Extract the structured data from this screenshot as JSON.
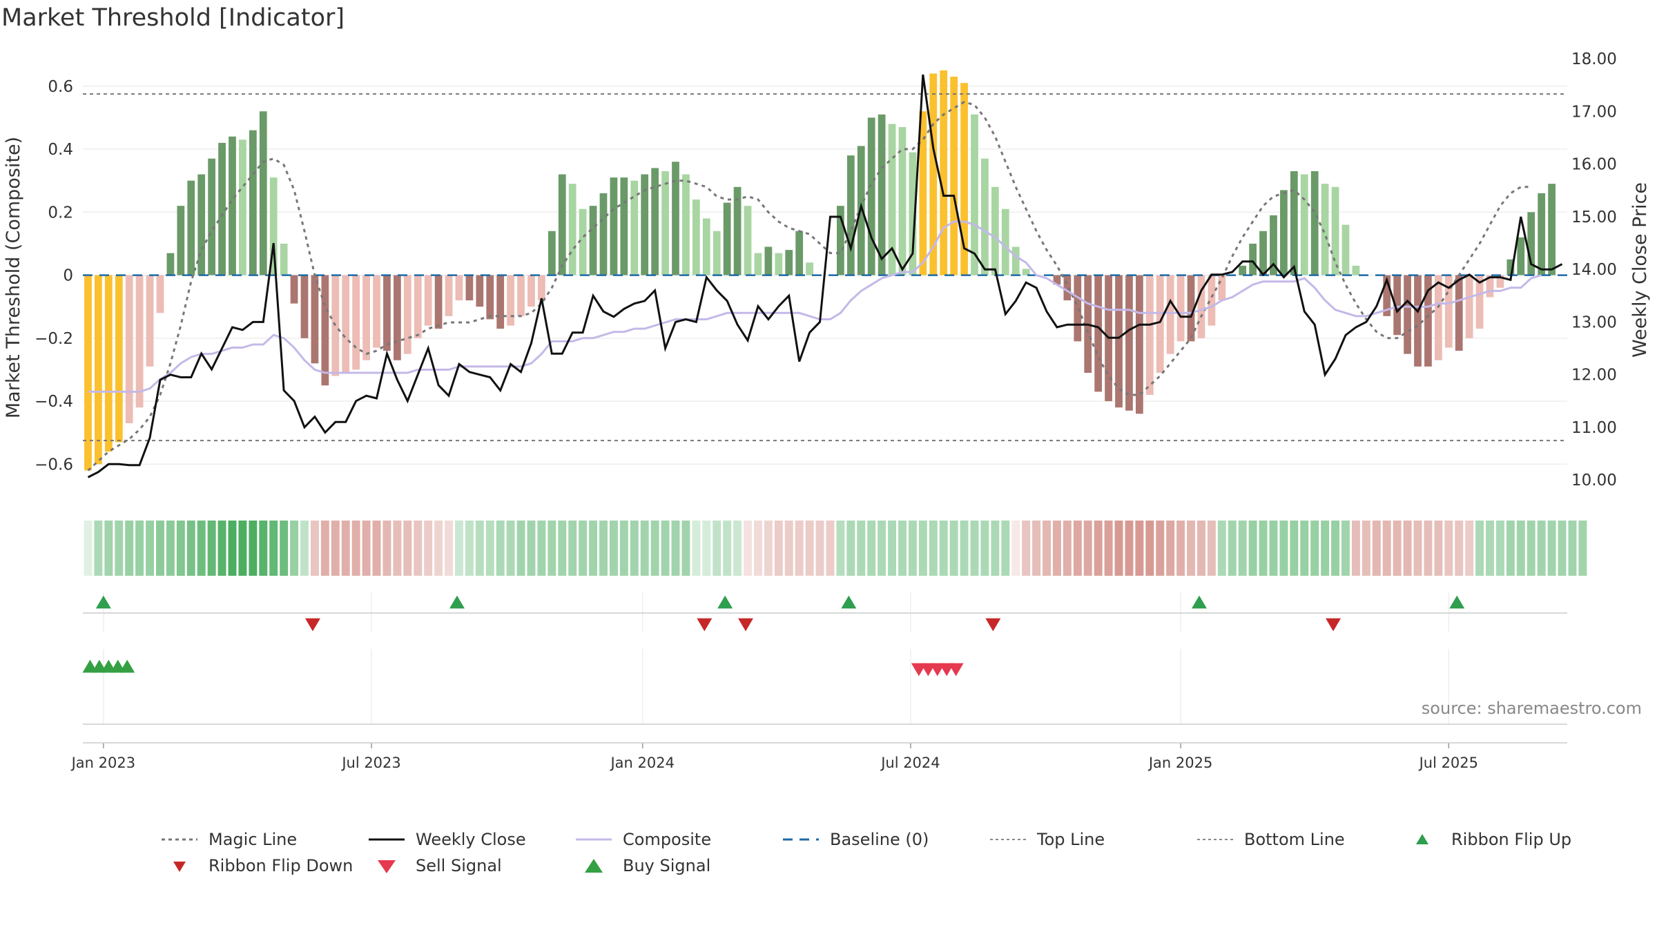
{
  "title": "Market Threshold [Indicator]",
  "source": "source: sharemaestro.com",
  "colors": {
    "gold": "#fbc02d",
    "dark_green": "#6a9a68",
    "light_green": "#a8d5a2",
    "dark_red": "#ab7670",
    "light_red": "#ecbcb5",
    "close": "#111111",
    "composite": "#c4b8e8",
    "magic": "#777777",
    "baseline": "#1f6aa5",
    "flip_up": "#2e9e4f",
    "flip_down": "#c62828",
    "sell": "#e53950",
    "buy": "#34a043"
  },
  "chart_data": {
    "type": "bar",
    "title": "Market Threshold [Indicator]",
    "ylabel": "Market Threshold (Composite)",
    "y2label": "Weekly Close Price",
    "ylim": [
      -0.7,
      0.72
    ],
    "y2lim": [
      9.7,
      18.2
    ],
    "yticks": [
      {
        "v": -0.6,
        "t": "−0.6"
      },
      {
        "v": -0.4,
        "t": "−0.4"
      },
      {
        "v": -0.2,
        "t": "−0.2"
      },
      {
        "v": 0,
        "t": "0"
      },
      {
        "v": 0.2,
        "t": "0.2"
      },
      {
        "v": 0.4,
        "t": "0.4"
      },
      {
        "v": 0.6,
        "t": "0.6"
      }
    ],
    "y2ticks": [
      "10.00",
      "11.00",
      "12.00",
      "13.00",
      "14.00",
      "15.00",
      "16.00",
      "17.00",
      "18.00"
    ],
    "xticks": [
      {
        "w": 1.5,
        "t": "Jan 2023"
      },
      {
        "w": 27.5,
        "t": "Jul 2023"
      },
      {
        "w": 53.8,
        "t": "Jan 2024"
      },
      {
        "w": 79.8,
        "t": "Jul 2024"
      },
      {
        "w": 106,
        "t": "Jan 2025"
      },
      {
        "w": 132,
        "t": "Jul 2025"
      }
    ],
    "weeks": 144,
    "top_line": 0.575,
    "bottom_line": -0.525,
    "baseline": 0,
    "gold_weeks": [
      0,
      1,
      2,
      3,
      81,
      82,
      83,
      84,
      85
    ],
    "bars": [
      -0.62,
      -0.6,
      -0.56,
      -0.53,
      -0.47,
      -0.42,
      -0.29,
      -0.12,
      0.07,
      0.22,
      0.3,
      0.32,
      0.37,
      0.42,
      0.44,
      0.43,
      0.46,
      0.52,
      0.31,
      0.1,
      -0.09,
      -0.2,
      -0.28,
      -0.35,
      -0.32,
      -0.31,
      -0.3,
      -0.27,
      -0.23,
      -0.24,
      -0.27,
      -0.25,
      -0.2,
      -0.16,
      -0.17,
      -0.13,
      -0.08,
      -0.08,
      -0.1,
      -0.14,
      -0.17,
      -0.16,
      -0.13,
      -0.1,
      -0.08,
      0.14,
      0.32,
      0.29,
      0.21,
      0.22,
      0.26,
      0.31,
      0.31,
      0.3,
      0.32,
      0.34,
      0.33,
      0.36,
      0.32,
      0.24,
      0.18,
      0.14,
      0.23,
      0.28,
      0.22,
      0.07,
      0.09,
      0.07,
      0.08,
      0.14,
      0.04,
      0.0,
      0.0,
      0.22,
      0.38,
      0.41,
      0.5,
      0.51,
      0.48,
      0.47,
      0.39,
      0.52,
      0.64,
      0.65,
      0.63,
      0.61,
      0.51,
      0.37,
      0.28,
      0.21,
      0.09,
      0.02,
      0.0,
      0.0,
      -0.03,
      -0.08,
      -0.21,
      -0.31,
      -0.37,
      -0.4,
      -0.42,
      -0.43,
      -0.44,
      -0.38,
      -0.31,
      -0.25,
      -0.21,
      -0.21,
      -0.2,
      -0.16,
      -0.08,
      0.0,
      0.03,
      0.1,
      0.14,
      0.19,
      0.27,
      0.33,
      0.32,
      0.33,
      0.29,
      0.28,
      0.16,
      0.03,
      0.0,
      0.0,
      -0.13,
      -0.19,
      -0.25,
      -0.29,
      -0.29,
      -0.27,
      -0.23,
      -0.24,
      -0.2,
      -0.17,
      -0.07,
      -0.04,
      0.05,
      0.12,
      0.2,
      0.26,
      0.29
    ],
    "magic_line": [
      -0.62,
      -0.59,
      -0.56,
      -0.54,
      -0.52,
      -0.49,
      -0.45,
      -0.38,
      -0.28,
      -0.16,
      -0.02,
      0.08,
      0.14,
      0.19,
      0.24,
      0.28,
      0.32,
      0.36,
      0.37,
      0.35,
      0.27,
      0.14,
      0.0,
      -0.1,
      -0.16,
      -0.2,
      -0.23,
      -0.25,
      -0.24,
      -0.22,
      -0.21,
      -0.2,
      -0.19,
      -0.17,
      -0.16,
      -0.15,
      -0.15,
      -0.15,
      -0.14,
      -0.13,
      -0.13,
      -0.13,
      -0.13,
      -0.12,
      -0.09,
      -0.04,
      0.03,
      0.08,
      0.12,
      0.15,
      0.18,
      0.21,
      0.23,
      0.25,
      0.27,
      0.28,
      0.29,
      0.3,
      0.3,
      0.29,
      0.28,
      0.25,
      0.24,
      0.24,
      0.25,
      0.24,
      0.2,
      0.17,
      0.15,
      0.14,
      0.13,
      0.1,
      0.07,
      0.07,
      0.14,
      0.22,
      0.29,
      0.34,
      0.37,
      0.4,
      0.4,
      0.43,
      0.48,
      0.51,
      0.53,
      0.55,
      0.54,
      0.5,
      0.44,
      0.36,
      0.28,
      0.21,
      0.14,
      0.08,
      0.03,
      -0.03,
      -0.1,
      -0.18,
      -0.26,
      -0.32,
      -0.36,
      -0.38,
      -0.38,
      -0.35,
      -0.32,
      -0.28,
      -0.24,
      -0.2,
      -0.13,
      -0.07,
      -0.01,
      0.06,
      0.12,
      0.17,
      0.22,
      0.25,
      0.26,
      0.27,
      0.24,
      0.2,
      0.13,
      0.04,
      -0.03,
      -0.09,
      -0.14,
      -0.18,
      -0.2,
      -0.2,
      -0.18,
      -0.16,
      -0.13,
      -0.1,
      -0.05,
      0.0,
      0.05,
      0.1,
      0.16,
      0.22,
      0.26,
      0.28,
      0.28
    ],
    "composite": [
      -0.37,
      -0.37,
      -0.37,
      -0.37,
      -0.37,
      -0.37,
      -0.36,
      -0.33,
      -0.31,
      -0.28,
      -0.26,
      -0.25,
      -0.25,
      -0.24,
      -0.23,
      -0.23,
      -0.22,
      -0.22,
      -0.19,
      -0.2,
      -0.23,
      -0.27,
      -0.3,
      -0.31,
      -0.31,
      -0.31,
      -0.31,
      -0.31,
      -0.31,
      -0.31,
      -0.31,
      -0.31,
      -0.3,
      -0.3,
      -0.3,
      -0.3,
      -0.29,
      -0.29,
      -0.29,
      -0.29,
      -0.29,
      -0.29,
      -0.29,
      -0.28,
      -0.25,
      -0.21,
      -0.21,
      -0.21,
      -0.2,
      -0.2,
      -0.19,
      -0.18,
      -0.18,
      -0.17,
      -0.17,
      -0.16,
      -0.15,
      -0.14,
      -0.14,
      -0.14,
      -0.14,
      -0.13,
      -0.12,
      -0.12,
      -0.12,
      -0.12,
      -0.12,
      -0.12,
      -0.12,
      -0.12,
      -0.13,
      -0.14,
      -0.14,
      -0.12,
      -0.08,
      -0.05,
      -0.03,
      -0.01,
      0.0,
      0.01,
      0.01,
      0.04,
      0.09,
      0.15,
      0.17,
      0.17,
      0.16,
      0.14,
      0.12,
      0.09,
      0.06,
      0.04,
      0.0,
      -0.01,
      -0.03,
      -0.05,
      -0.07,
      -0.09,
      -0.1,
      -0.11,
      -0.11,
      -0.11,
      -0.12,
      -0.12,
      -0.12,
      -0.12,
      -0.12,
      -0.12,
      -0.11,
      -0.1,
      -0.08,
      -0.07,
      -0.05,
      -0.03,
      -0.02,
      -0.02,
      -0.02,
      -0.02,
      -0.01,
      -0.04,
      -0.08,
      -0.11,
      -0.12,
      -0.13,
      -0.13,
      -0.12,
      -0.11,
      -0.1,
      -0.1,
      -0.1,
      -0.1,
      -0.09,
      -0.09,
      -0.08,
      -0.07,
      -0.06,
      -0.05,
      -0.05,
      -0.04,
      -0.04,
      -0.01,
      0.0
    ],
    "weekly_close": [
      10.05,
      10.15,
      10.3,
      10.3,
      10.28,
      10.28,
      10.8,
      11.9,
      12.0,
      11.95,
      11.95,
      12.4,
      12.1,
      12.5,
      12.9,
      12.85,
      13.0,
      13.0,
      14.5,
      11.7,
      11.5,
      11.0,
      11.2,
      10.9,
      11.1,
      11.1,
      11.5,
      11.6,
      11.55,
      12.4,
      11.9,
      11.5,
      12.0,
      12.5,
      11.8,
      11.6,
      12.2,
      12.05,
      12.0,
      11.95,
      11.7,
      12.2,
      12.05,
      12.6,
      13.45,
      12.4,
      12.4,
      12.8,
      12.8,
      13.5,
      13.2,
      13.1,
      13.25,
      13.35,
      13.4,
      13.6,
      12.5,
      13.0,
      13.05,
      13.0,
      13.85,
      13.6,
      13.4,
      12.95,
      12.65,
      13.3,
      13.05,
      13.3,
      13.5,
      12.25,
      12.8,
      13.0,
      15.0,
      15.0,
      14.4,
      15.2,
      14.6,
      14.2,
      14.4,
      14.0,
      14.3,
      17.7,
      16.3,
      15.4,
      15.4,
      14.4,
      14.3,
      14.0,
      14.0,
      13.15,
      13.4,
      13.75,
      13.65,
      13.2,
      12.9,
      12.95,
      12.95,
      12.95,
      12.9,
      12.7,
      12.7,
      12.85,
      12.95,
      12.95,
      13.0,
      13.4,
      13.1,
      13.1,
      13.6,
      13.9,
      13.9,
      13.95,
      14.15,
      14.15,
      13.9,
      14.1,
      13.85,
      14.05,
      13.2,
      12.95,
      12.0,
      12.3,
      12.75,
      12.9,
      13.0,
      13.3,
      13.8,
      13.2,
      13.4,
      13.2,
      13.6,
      13.75,
      13.65,
      13.8,
      13.9,
      13.75,
      13.85,
      13.85,
      13.8,
      15.0,
      14.1,
      14.0,
      14.0,
      14.1
    ],
    "ribbon": [
      0.15,
      0.4,
      0.45,
      0.45,
      0.5,
      0.5,
      0.5,
      0.55,
      0.55,
      0.6,
      0.65,
      0.7,
      0.75,
      0.8,
      0.85,
      0.85,
      0.85,
      0.8,
      0.75,
      0.7,
      0.5,
      0.3,
      -0.4,
      -0.55,
      -0.55,
      -0.55,
      -0.55,
      -0.55,
      -0.55,
      -0.5,
      -0.45,
      -0.45,
      -0.4,
      -0.35,
      -0.3,
      -0.25,
      0.25,
      0.3,
      0.35,
      0.35,
      0.4,
      0.4,
      0.45,
      0.45,
      0.45,
      0.45,
      0.45,
      0.45,
      0.45,
      0.45,
      0.45,
      0.45,
      0.45,
      0.45,
      0.45,
      0.45,
      0.45,
      0.45,
      0.45,
      0.2,
      0.2,
      0.3,
      0.3,
      0.25,
      -0.2,
      -0.25,
      -0.3,
      -0.35,
      -0.35,
      -0.35,
      -0.35,
      -0.35,
      -0.35,
      0.35,
      0.4,
      0.4,
      0.4,
      0.4,
      0.4,
      0.4,
      0.4,
      0.4,
      0.4,
      0.4,
      0.4,
      0.4,
      0.4,
      0.4,
      0.4,
      0.4,
      -0.15,
      -0.4,
      -0.45,
      -0.5,
      -0.55,
      -0.55,
      -0.6,
      -0.6,
      -0.65,
      -0.65,
      -0.7,
      -0.7,
      -0.7,
      -0.7,
      -0.65,
      -0.6,
      -0.55,
      -0.5,
      -0.5,
      -0.45,
      0.4,
      0.45,
      0.45,
      0.5,
      0.5,
      0.5,
      0.5,
      0.5,
      0.5,
      0.5,
      0.5,
      0.5,
      0.45,
      -0.45,
      -0.45,
      -0.5,
      -0.5,
      -0.5,
      -0.5,
      -0.45,
      -0.45,
      -0.45,
      -0.4,
      -0.4,
      -0.35,
      0.4,
      0.4,
      0.4,
      0.45,
      0.45,
      0.45,
      0.45,
      0.45,
      0.45,
      0.45,
      0.45
    ],
    "ribbon_flip_up": [
      1.5,
      35.8,
      61.8,
      73.8,
      107.8,
      132.8
    ],
    "ribbon_flip_down": [
      21.8,
      59.8,
      63.8,
      87.8,
      120.8
    ],
    "buy_signal": [
      0.2,
      1.1,
      2.0,
      2.9,
      3.8
    ],
    "sell_signal": [
      80.6,
      81.5,
      82.4,
      83.3,
      84.2
    ]
  },
  "legend": [
    {
      "key": "magic",
      "label": "Magic Line"
    },
    {
      "key": "close",
      "label": "Weekly Close"
    },
    {
      "key": "composite",
      "label": "Composite"
    },
    {
      "key": "baseline",
      "label": "Baseline (0)"
    },
    {
      "key": "top",
      "label": "Top Line"
    },
    {
      "key": "bottom",
      "label": "Bottom Line"
    },
    {
      "key": "flipup",
      "label": "Ribbon Flip Up"
    },
    {
      "key": "flipdown",
      "label": "Ribbon Flip Down"
    },
    {
      "key": "sell",
      "label": "Sell Signal"
    },
    {
      "key": "buy",
      "label": "Buy Signal"
    }
  ]
}
